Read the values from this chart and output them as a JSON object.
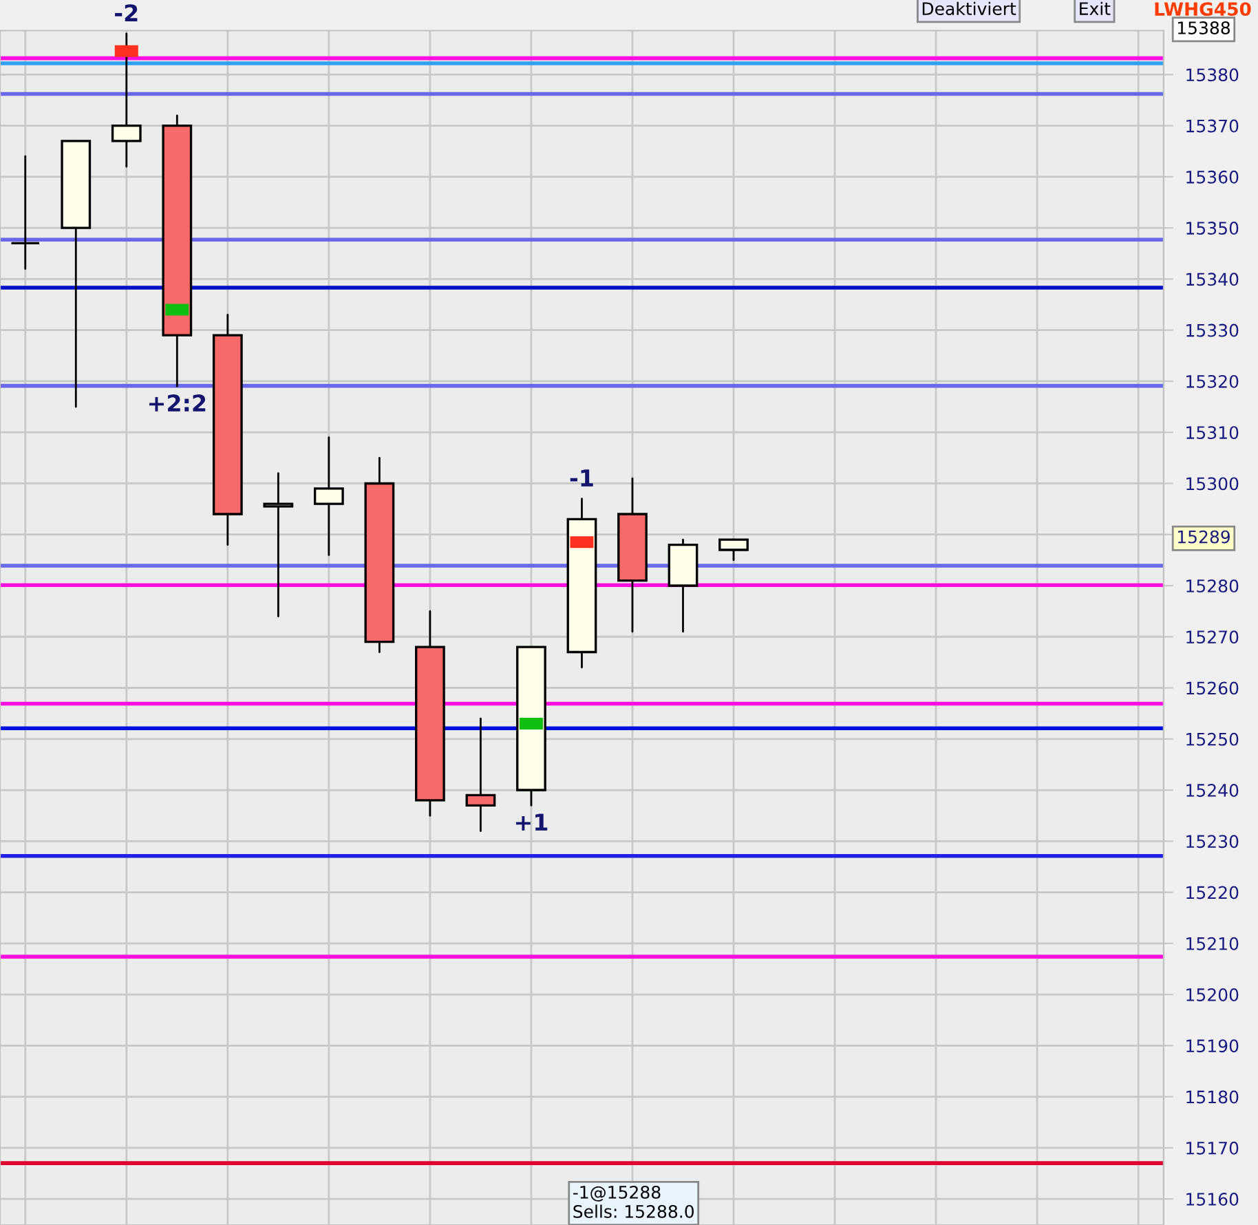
{
  "chart_data": {
    "type": "candlestick",
    "categories": [
      null,
      null,
      null,
      null,
      null,
      null,
      null,
      null,
      null,
      null,
      null,
      null,
      null,
      null,
      null,
      null,
      null,
      null,
      null,
      null,
      null,
      null,
      null
    ],
    "ohlc": [
      [
        15347,
        15364,
        15342,
        15347
      ],
      [
        15350,
        15367,
        15315,
        15367
      ],
      [
        15367,
        15388,
        15362,
        15370
      ],
      [
        15370,
        15372,
        15319,
        15329
      ],
      [
        15329,
        15333,
        15288,
        15294
      ],
      [
        15295.5,
        15302,
        15274,
        15296
      ],
      [
        15296,
        15309,
        15286,
        15299
      ],
      [
        15300,
        15305,
        15267,
        15269
      ],
      [
        15268,
        15275,
        15235,
        15238
      ],
      [
        15239,
        15254,
        15232,
        15237
      ],
      [
        15240,
        15268,
        15237,
        15268
      ],
      [
        15267,
        15297,
        15264,
        15293
      ],
      [
        15294,
        15301,
        15271,
        15281
      ],
      [
        15280,
        15289,
        15271,
        15288
      ],
      [
        15287,
        15289,
        15285,
        15289
      ],
      null,
      null,
      null,
      null,
      null,
      null,
      null,
      null
    ],
    "colors": [
      "#000000",
      "#fffee8",
      "#fffee8",
      "#f86a6a",
      "#f86a6a",
      "#fffee8",
      "#fffee8",
      "#f86a6a",
      "#f86a6a",
      "#f86a6a",
      "#fffee8",
      "#fffee8",
      "#f86a6a",
      "#fffee8",
      "#fffee8",
      null,
      null,
      null,
      null,
      null,
      null,
      null,
      null
    ],
    "series": [
      {
        "type": "scatter",
        "color": "#ff3020",
        "values": [
          null,
          null,
          15384.6,
          null,
          null,
          null,
          null,
          null,
          null,
          null,
          null,
          15288.5,
          null,
          null,
          null,
          null,
          null,
          null,
          null,
          null,
          null,
          null,
          null
        ]
      },
      {
        "type": "scatter",
        "color": "#10c010",
        "values": [
          null,
          null,
          null,
          15334,
          null,
          null,
          null,
          null,
          null,
          null,
          15253,
          null,
          null,
          null,
          null,
          null,
          null,
          null,
          null,
          null,
          null,
          null,
          null
        ]
      }
    ],
    "ylim": [
      15154.9,
      15388.6
    ],
    "yticks": [
      15160,
      15170,
      15180,
      15190,
      15200,
      15210,
      15220,
      15230,
      15240,
      15250,
      15260,
      15270,
      15280,
      {
        "value": 15290,
        "label": null
      },
      15300,
      15310,
      15320,
      15330,
      15340,
      15350,
      15360,
      15370,
      15380
    ],
    "ref_lines": [
      {
        "axis": "y",
        "value": 15383.2,
        "color": "#ff10e0"
      },
      {
        "axis": "y",
        "value": 15382.2,
        "color": "#30a0f0"
      },
      {
        "axis": "y",
        "value": 15376.2,
        "color": "#6868e8"
      },
      {
        "axis": "y",
        "value": 15347.7,
        "color": "#6868e8"
      },
      {
        "axis": "y",
        "value": 15338.3,
        "color": "#0010c8"
      },
      {
        "axis": "y",
        "value": 15319.1,
        "color": "#6868e8"
      },
      {
        "axis": "y",
        "value": 15283.9,
        "color": "#6868e8"
      },
      {
        "axis": "y",
        "value": 15280.1,
        "color": "#ff10e0"
      },
      {
        "axis": "y",
        "value": 15256.9,
        "color": "#ff10e0"
      },
      {
        "axis": "y",
        "value": 15252.1,
        "color": "#0010e0"
      },
      {
        "axis": "y",
        "value": 15227.1,
        "color": "#2020e8"
      },
      {
        "axis": "y",
        "value": 15207.4,
        "color": "#ff10e0"
      },
      {
        "axis": "y",
        "value": 15167.0,
        "color": "#e00030"
      }
    ],
    "annotations": [
      "Deaktiviert",
      "Exit",
      "LWHG450",
      "-1@15288\nSells: 15288.0",
      "15388",
      "15289",
      "-2",
      "-1",
      "+2:2",
      "+1"
    ],
    "grid": true,
    "tick_labels": "y"
  }
}
